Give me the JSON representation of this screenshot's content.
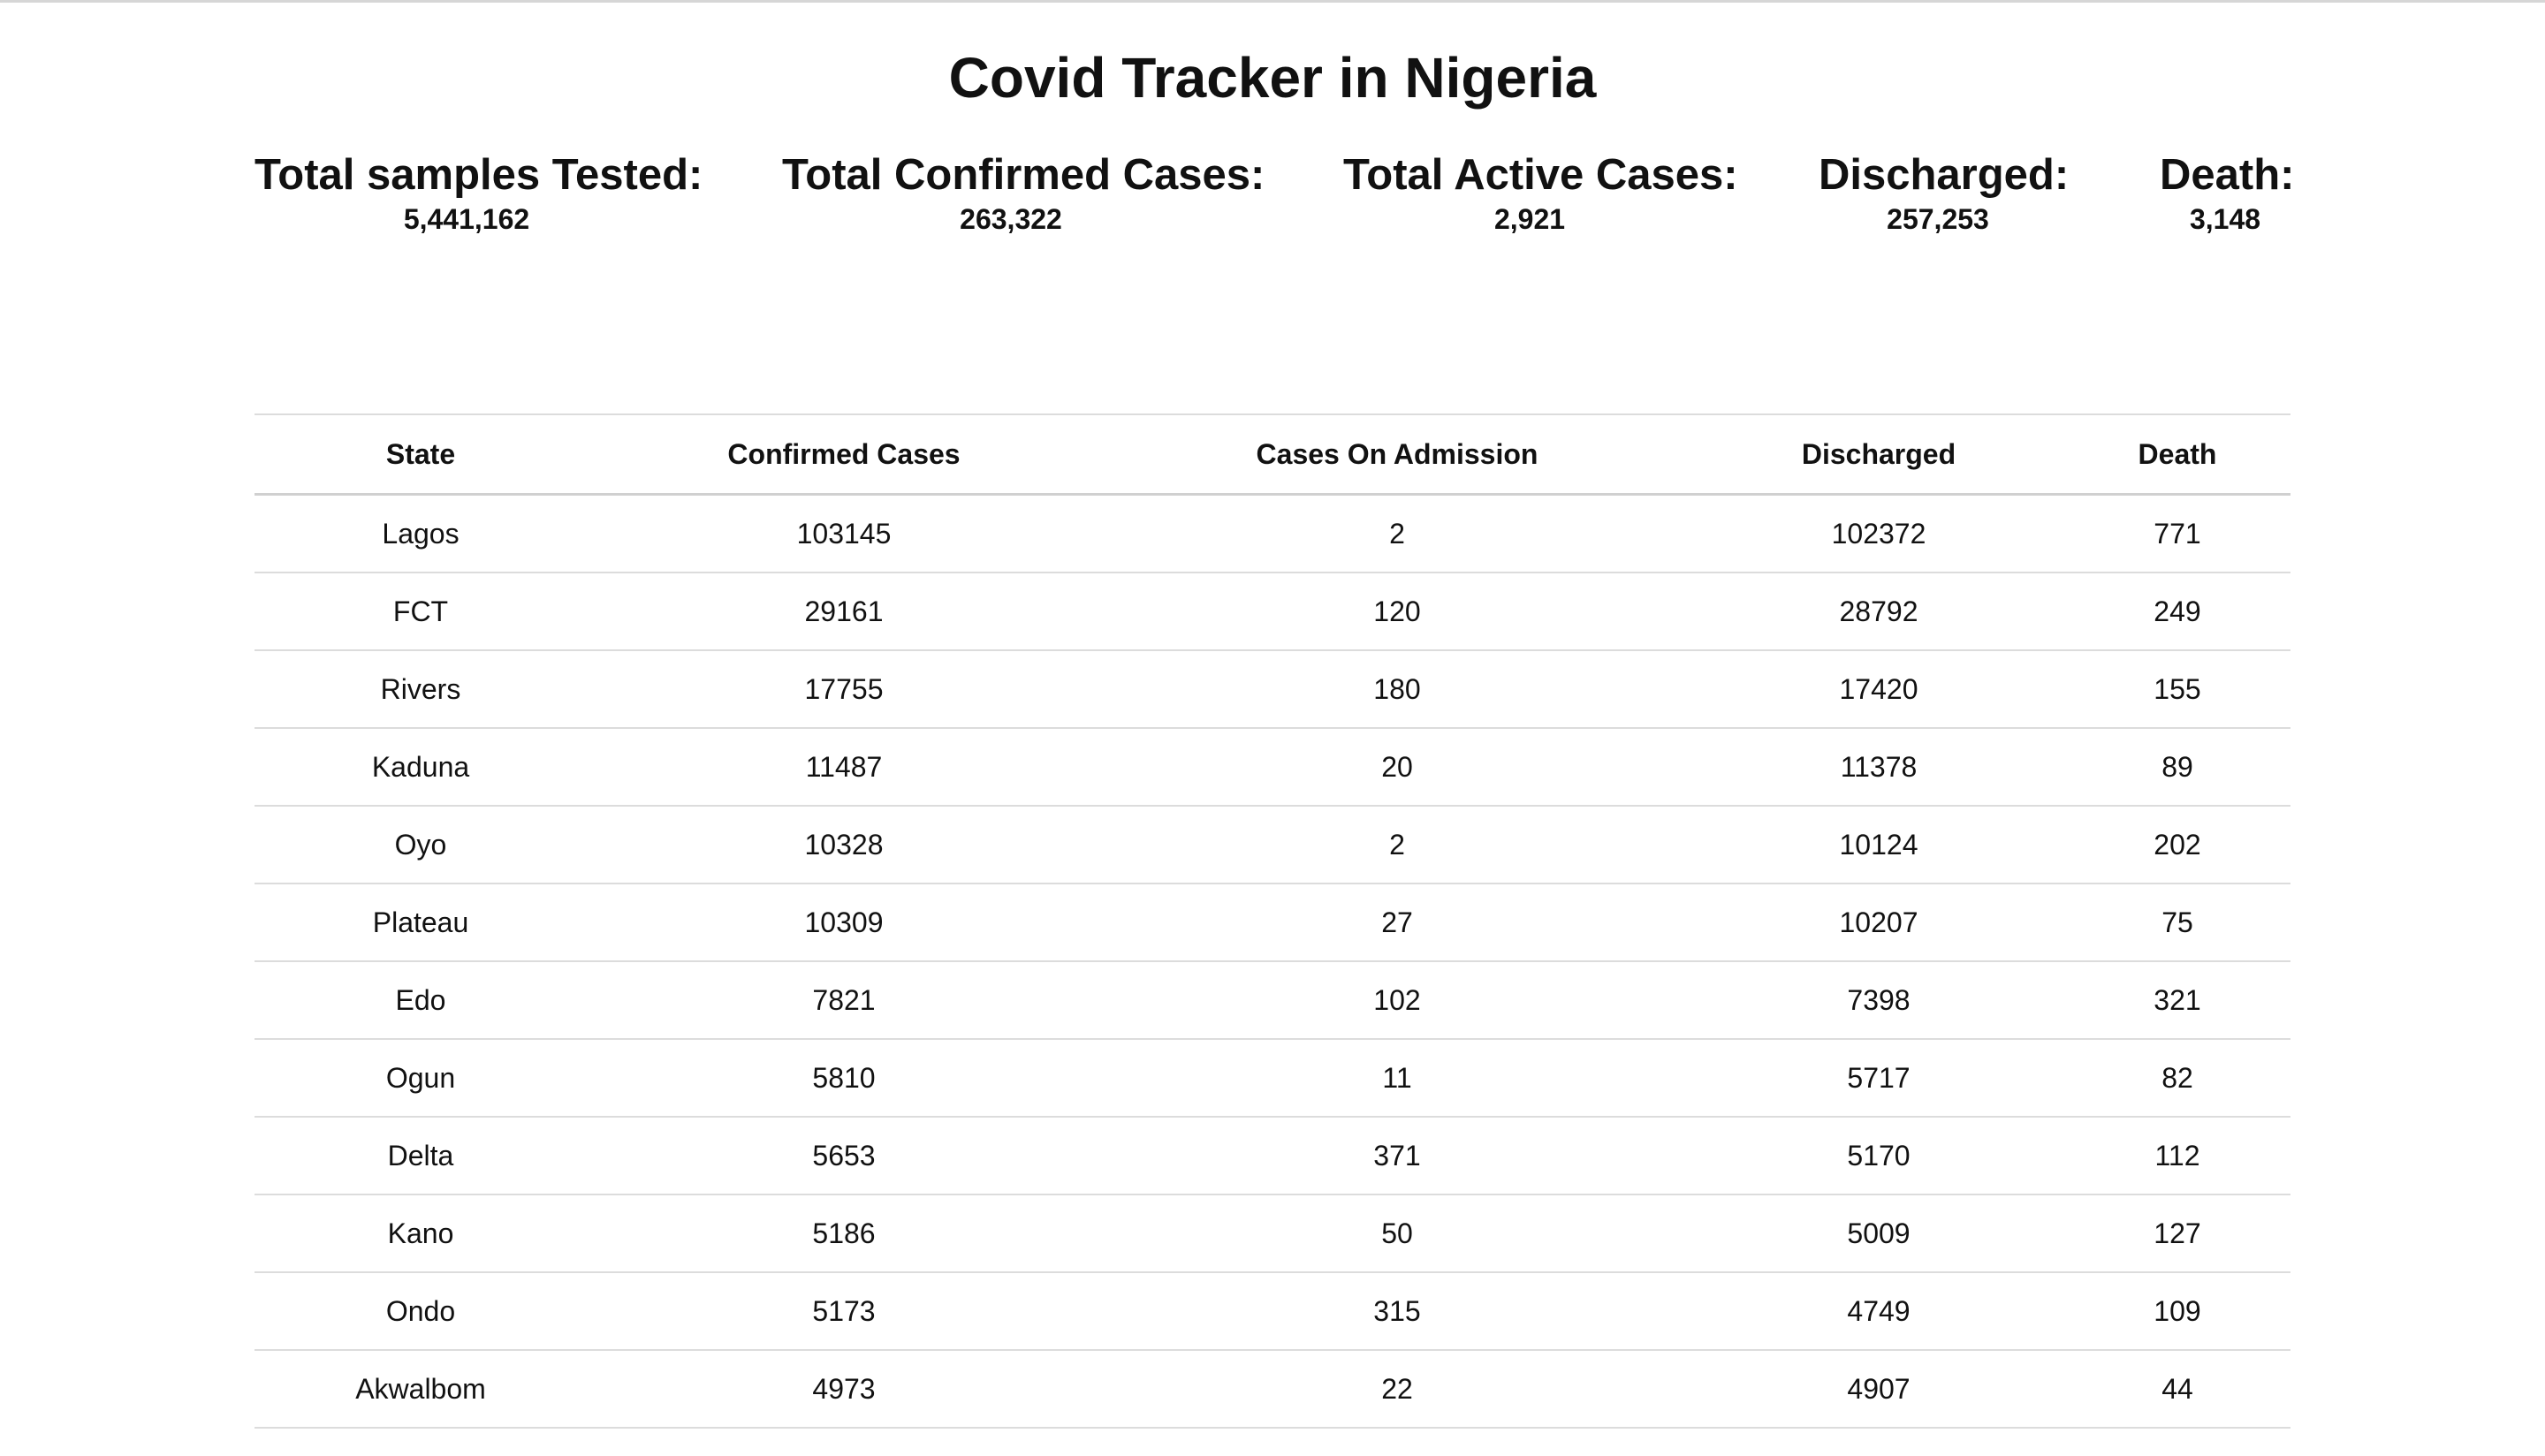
{
  "page": {
    "title": "Covid Tracker in Nigeria"
  },
  "stats": [
    {
      "label": "Total samples Tested:",
      "value": "5,441,162"
    },
    {
      "label": "Total Confirmed Cases:",
      "value": "263,322"
    },
    {
      "label": "Total Active Cases:",
      "value": "2,921"
    },
    {
      "label": "Discharged:",
      "value": "257,253"
    },
    {
      "label": "Death:",
      "value": "3,148"
    }
  ],
  "table": {
    "headers": [
      "State",
      "Confirmed Cases",
      "Cases On Admission",
      "Discharged",
      "Death"
    ],
    "rows": [
      [
        "Lagos",
        "103145",
        "2",
        "102372",
        "771"
      ],
      [
        "FCT",
        "29161",
        "120",
        "28792",
        "249"
      ],
      [
        "Rivers",
        "17755",
        "180",
        "17420",
        "155"
      ],
      [
        "Kaduna",
        "11487",
        "20",
        "11378",
        "89"
      ],
      [
        "Oyo",
        "10328",
        "2",
        "10124",
        "202"
      ],
      [
        "Plateau",
        "10309",
        "27",
        "10207",
        "75"
      ],
      [
        "Edo",
        "7821",
        "102",
        "7398",
        "321"
      ],
      [
        "Ogun",
        "5810",
        "11",
        "5717",
        "82"
      ],
      [
        "Delta",
        "5653",
        "371",
        "5170",
        "112"
      ],
      [
        "Kano",
        "5186",
        "50",
        "5009",
        "127"
      ],
      [
        "Ondo",
        "5173",
        "315",
        "4749",
        "109"
      ],
      [
        "Akwalbom",
        "4973",
        "22",
        "4907",
        "44"
      ]
    ]
  }
}
